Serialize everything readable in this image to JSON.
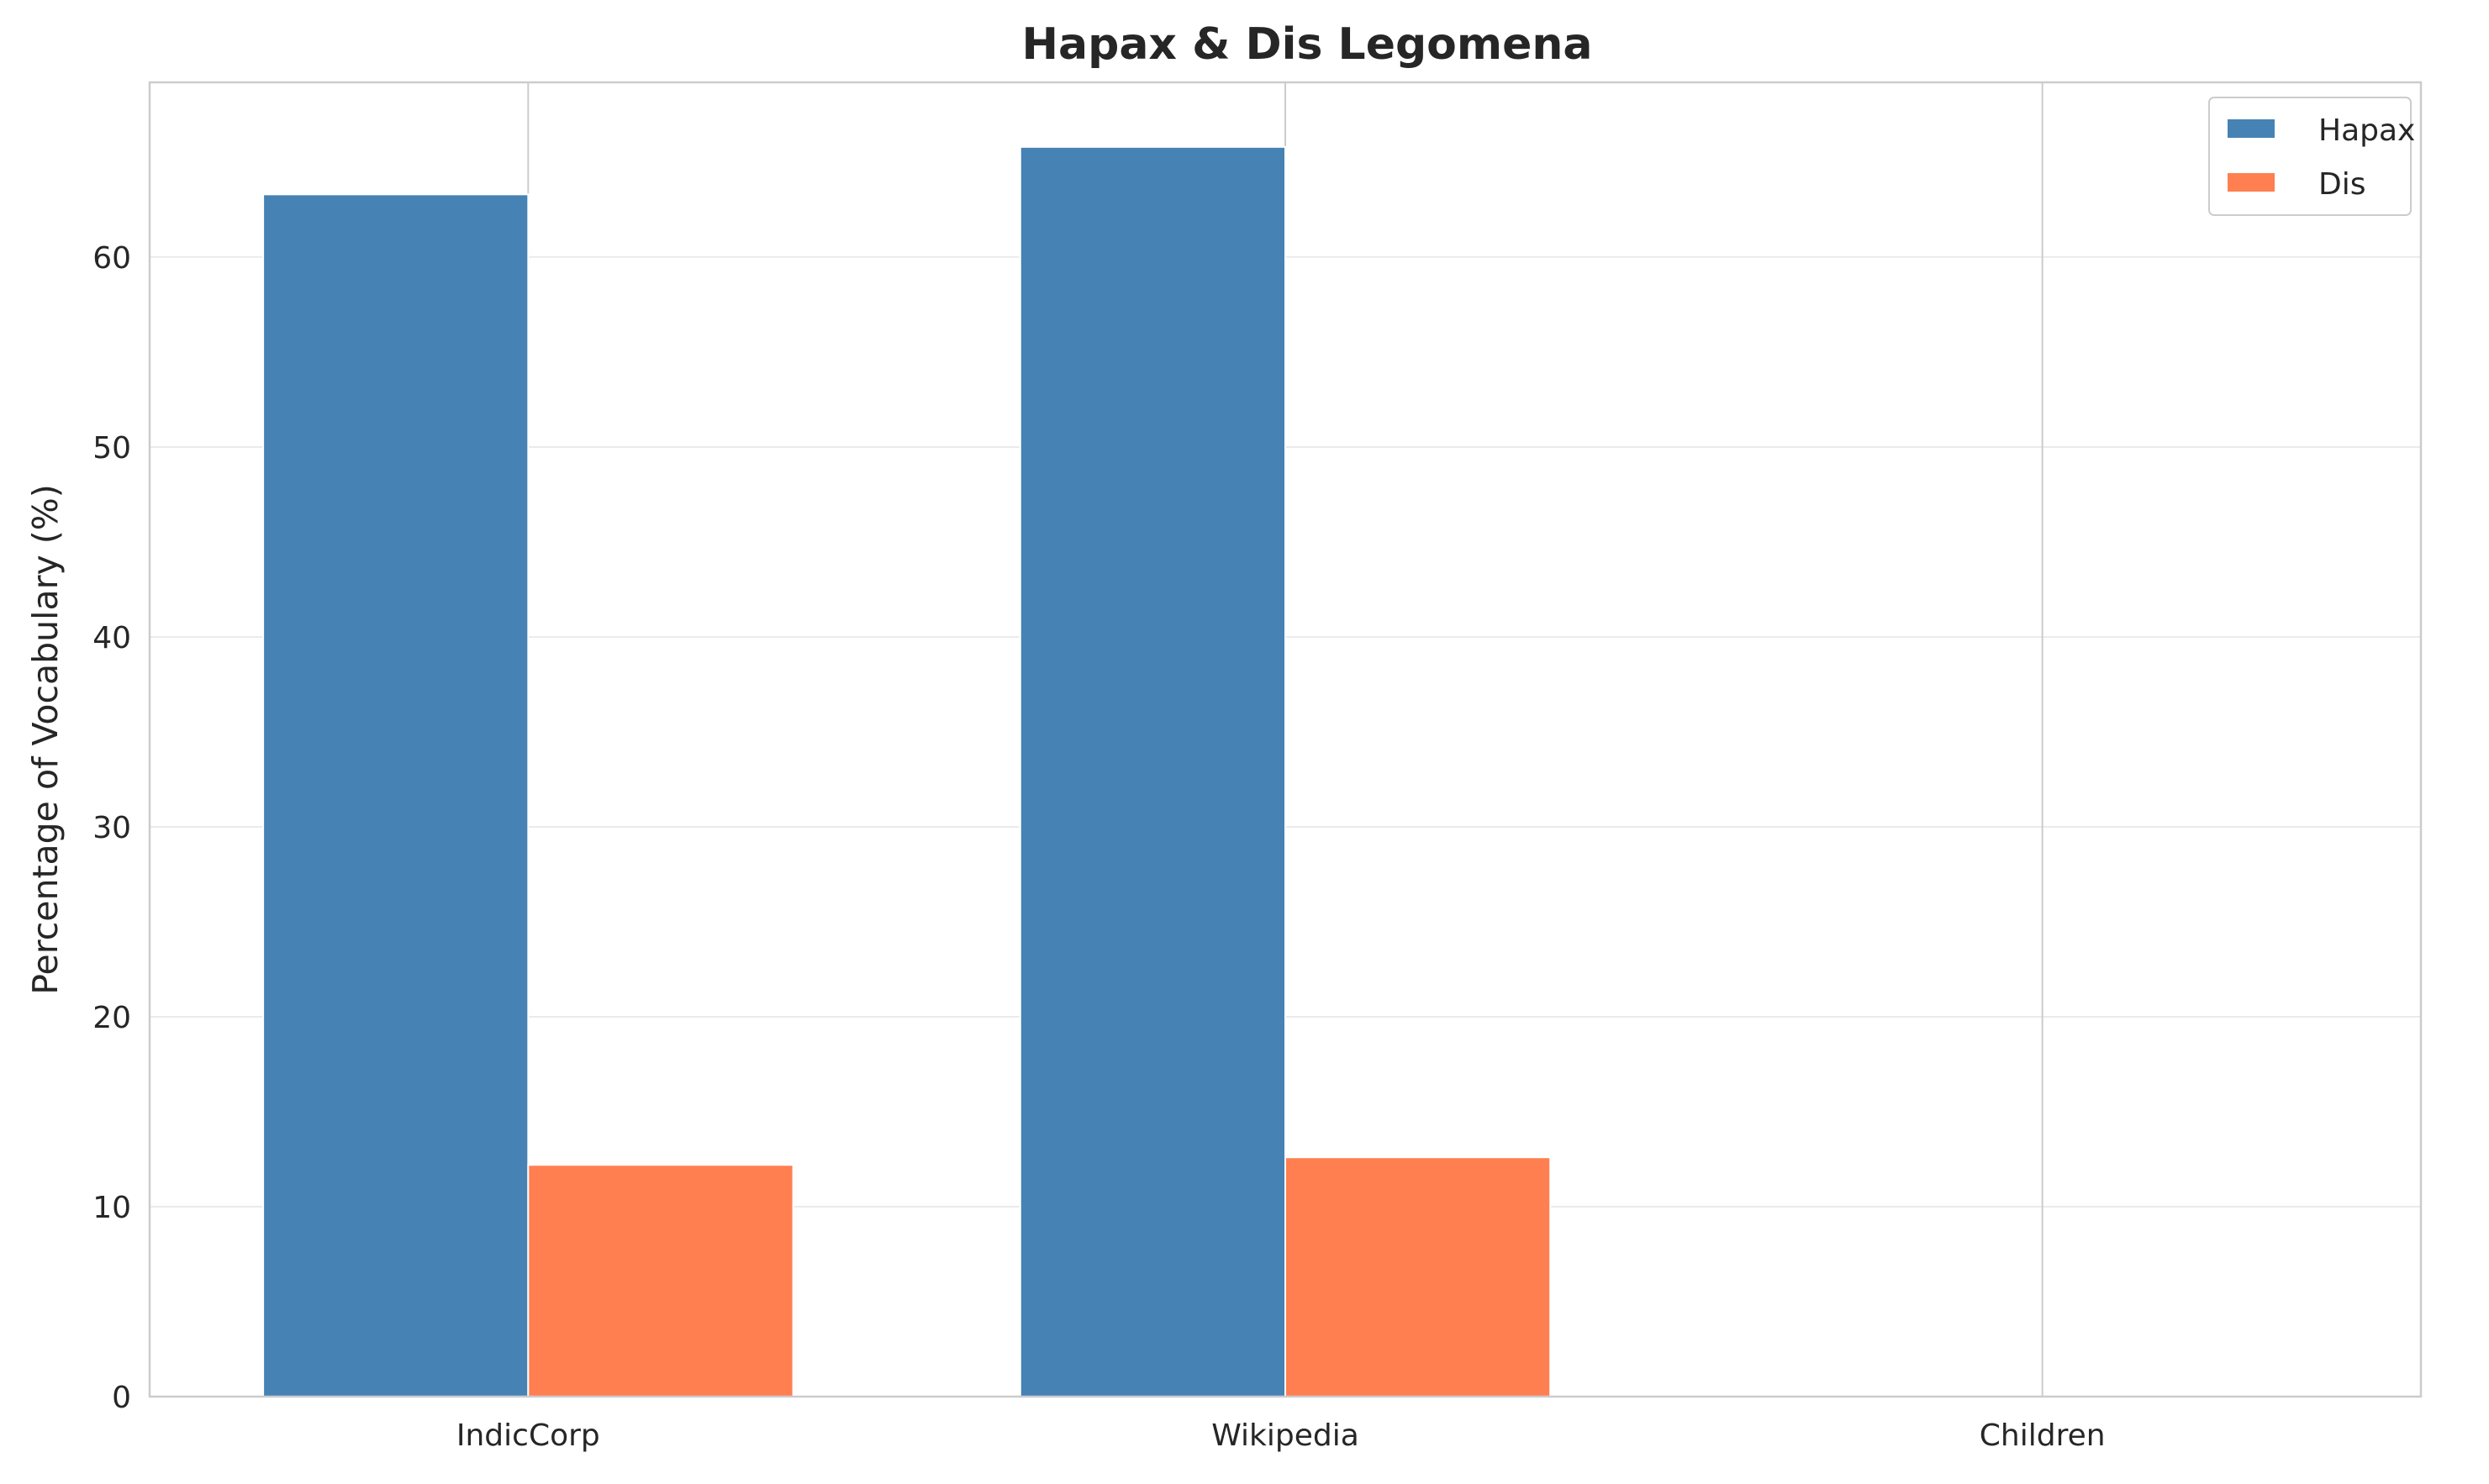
{
  "chart_data": {
    "type": "bar",
    "title": "Hapax & Dis Legomena",
    "xlabel": "",
    "ylabel": "Percentage of Vocabulary (%)",
    "categories": [
      "IndicCorp",
      "Wikipedia",
      "Children"
    ],
    "series": [
      {
        "name": "Hapax",
        "color": "#4682b4",
        "values": [
          63.3,
          65.8,
          null
        ]
      },
      {
        "name": "Dis",
        "color": "#ff7f50",
        "values": [
          12.2,
          12.6,
          null
        ]
      }
    ],
    "ylim": [
      0,
      69.2
    ],
    "yticks": [
      "0",
      "10",
      "20",
      "30",
      "40",
      "50",
      "60"
    ],
    "grid": true,
    "legend_position": "top-right"
  }
}
